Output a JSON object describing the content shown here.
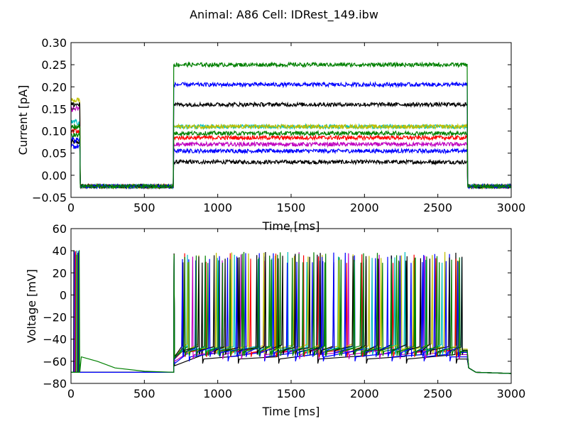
{
  "figure": {
    "title": "Animal: A86 Cell: IDRest_149.ibw"
  },
  "chart_data": [
    {
      "type": "line",
      "panel": "top",
      "xlabel": "Time [ms]",
      "ylabel": "Current [pA]",
      "xlim": [
        0,
        3000
      ],
      "ylim": [
        -0.05,
        0.3
      ],
      "xticks": [
        0,
        500,
        1000,
        1500,
        2000,
        2500,
        3000
      ],
      "yticks": [
        -0.05,
        0.0,
        0.05,
        0.1,
        0.15,
        0.2,
        0.25,
        0.3
      ],
      "xtick_labels": [
        "0",
        "500",
        "1000",
        "1500",
        "2000",
        "2500",
        "3000"
      ],
      "ytick_labels": [
        "−0.05",
        "0.00",
        "0.05",
        "0.10",
        "0.15",
        "0.20",
        "0.25",
        "0.30"
      ],
      "grid": false,
      "baseline": -0.025,
      "pre_pulse": {
        "start": 0,
        "end": 60
      },
      "step": {
        "start": 700,
        "end": 2700
      },
      "series": [
        {
          "color": "#000000",
          "pre_pulse_amp": 0.075,
          "step_amp": 0.03
        },
        {
          "color": "#0000ff",
          "pre_pulse_amp": 0.065,
          "step_amp": 0.055
        },
        {
          "color": "#bf00bf",
          "pre_pulse_amp": 0.15,
          "step_amp": 0.07
        },
        {
          "color": "#ff0000",
          "pre_pulse_amp": 0.1,
          "step_amp": 0.085
        },
        {
          "color": "#008000",
          "pre_pulse_amp": 0.09,
          "step_amp": 0.095
        },
        {
          "color": "#00bfbf",
          "pre_pulse_amp": 0.12,
          "step_amp": 0.11
        },
        {
          "color": "#bfbf00",
          "pre_pulse_amp": 0.17,
          "step_amp": 0.11
        },
        {
          "color": "#000000",
          "pre_pulse_amp": 0.16,
          "step_amp": 0.16
        },
        {
          "color": "#0000ff",
          "pre_pulse_amp": 0.08,
          "step_amp": 0.205
        },
        {
          "color": "#008000",
          "pre_pulse_amp": 0.11,
          "step_amp": 0.25
        }
      ]
    },
    {
      "type": "line",
      "panel": "bottom",
      "xlabel": "Time [ms]",
      "ylabel": "Voltage [mV]",
      "xlim": [
        0,
        3000
      ],
      "ylim": [
        -80,
        60
      ],
      "xticks": [
        0,
        500,
        1000,
        1500,
        2000,
        2500,
        3000
      ],
      "yticks": [
        -80,
        -60,
        -40,
        -20,
        0,
        20,
        40,
        60
      ],
      "xtick_labels": [
        "0",
        "500",
        "1000",
        "1500",
        "2000",
        "2500",
        "3000"
      ],
      "ytick_labels": [
        "−80",
        "−60",
        "−40",
        "−20",
        "0",
        "20",
        "40",
        "60"
      ],
      "grid": false,
      "resting_potential": -70,
      "spike_peak": 38,
      "step": {
        "start": 700,
        "end": 2700
      },
      "series": [
        {
          "color": "#000000",
          "trough": -58,
          "n_spikes": 7
        },
        {
          "color": "#0000ff",
          "trough": -56,
          "n_spikes": 9
        },
        {
          "color": "#bf00bf",
          "trough": -54,
          "n_spikes": 11
        },
        {
          "color": "#ff0000",
          "trough": -52,
          "n_spikes": 13
        },
        {
          "color": "#008000",
          "trough": -51,
          "n_spikes": 15
        },
        {
          "color": "#00bfbf",
          "trough": -50,
          "n_spikes": 17
        },
        {
          "color": "#bfbf00",
          "trough": -49,
          "n_spikes": 19
        },
        {
          "color": "#000000",
          "trough": -50,
          "n_spikes": 21
        },
        {
          "color": "#0000ff",
          "trough": -52,
          "n_spikes": 23
        },
        {
          "color": "#008000",
          "trough": -51,
          "n_spikes": 24
        }
      ]
    }
  ]
}
